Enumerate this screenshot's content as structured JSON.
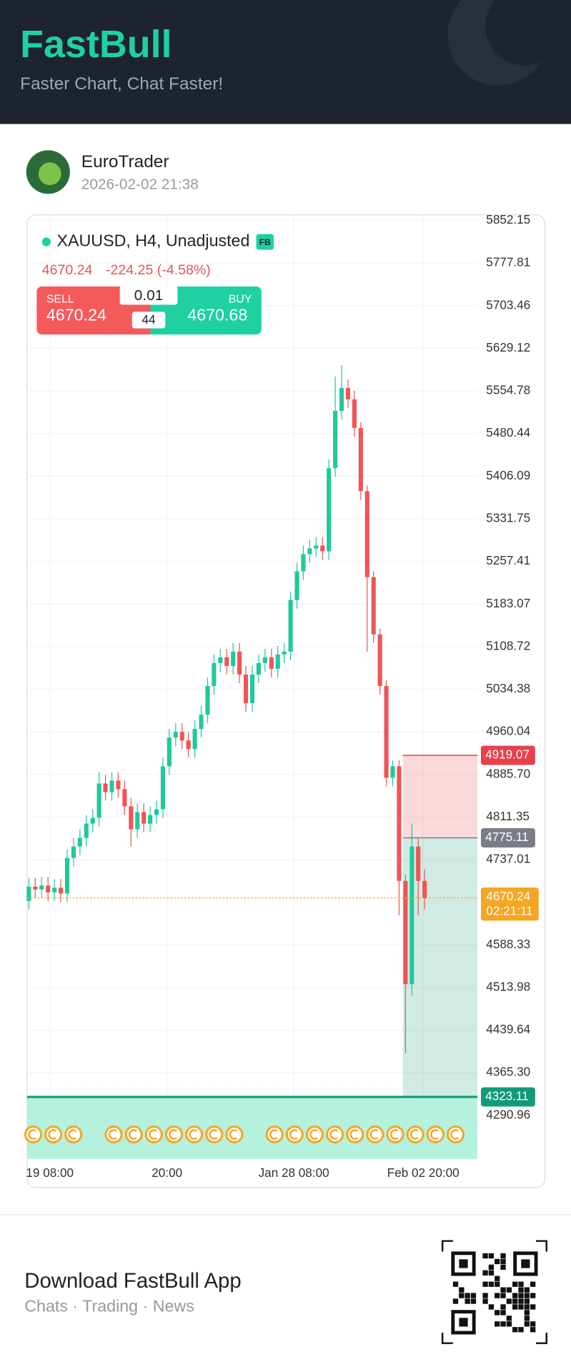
{
  "header": {
    "title": "FastBull",
    "subtitle": "Faster Chart, Chat Faster!"
  },
  "post": {
    "author": "EuroTrader",
    "time": "2026-02-02 21:38"
  },
  "chart_header": {
    "symbol": "XAUUSD, H4, Unadjusted",
    "badge": "FB",
    "price": "4670.24",
    "change": "-224.25 (-4.58%)",
    "sell_label": "SELL",
    "sell_price": "4670.24",
    "lot": "0.01",
    "spread": "44",
    "buy_label": "BUY",
    "buy_price": "4670.68"
  },
  "chart_data": {
    "type": "candlestick",
    "up_color": "#1fc99a",
    "down_color": "#f05454",
    "open": [
      4665,
      4690,
      4685,
      4692,
      4680,
      4688,
      4678,
      4740,
      4760,
      4775,
      4800,
      4810,
      4870,
      4855,
      4875,
      4860,
      4830,
      4790,
      4820,
      4800,
      4815,
      4825,
      4900,
      4950,
      4960,
      4945,
      4930,
      4965,
      4990,
      5040,
      5080,
      5090,
      5075,
      5100,
      5060,
      5010,
      5060,
      5080,
      5090,
      5070,
      5095,
      5100,
      5190,
      5240,
      5270,
      5280,
      5285,
      5275,
      5420,
      5520,
      5560,
      5540,
      5490,
      5380,
      5230,
      5130,
      5040,
      4880,
      4900,
      4700,
      4520,
      4760,
      4700
    ],
    "high": [
      4705,
      4705,
      4707,
      4707,
      4703,
      4703,
      4755,
      4775,
      4790,
      4815,
      4825,
      4890,
      4885,
      4890,
      4890,
      4875,
      4845,
      4835,
      4835,
      4830,
      4840,
      4915,
      4965,
      4975,
      4975,
      4960,
      4980,
      5005,
      5055,
      5095,
      5105,
      5105,
      5115,
      5115,
      5075,
      5075,
      5095,
      5105,
      5105,
      5110,
      5115,
      5205,
      5255,
      5285,
      5295,
      5300,
      5300,
      5435,
      5580,
      5600,
      5575,
      5555,
      5500,
      5390,
      5240,
      5140,
      5050,
      4910,
      4910,
      4710,
      4800,
      4775,
      4720
    ],
    "low": [
      4650,
      4670,
      4670,
      4665,
      4665,
      4663,
      4663,
      4725,
      4745,
      4760,
      4785,
      4795,
      4840,
      4840,
      4845,
      4815,
      4760,
      4775,
      4785,
      4785,
      4800,
      4810,
      4885,
      4935,
      4930,
      4915,
      4915,
      4950,
      4975,
      5025,
      5065,
      5060,
      5060,
      5045,
      4995,
      4995,
      5045,
      5065,
      5055,
      5055,
      5080,
      5085,
      5175,
      5225,
      5255,
      5265,
      5260,
      5260,
      5405,
      5505,
      5525,
      5475,
      5365,
      5100,
      5115,
      5025,
      4865,
      4865,
      4640,
      4400,
      4500,
      4640,
      4650
    ],
    "close": [
      4690,
      4685,
      4692,
      4680,
      4688,
      4678,
      4740,
      4760,
      4775,
      4800,
      4810,
      4870,
      4855,
      4875,
      4860,
      4830,
      4790,
      4820,
      4800,
      4815,
      4825,
      4900,
      4950,
      4960,
      4945,
      4930,
      4965,
      4990,
      5040,
      5080,
      5090,
      5075,
      5100,
      5060,
      5010,
      5060,
      5080,
      5090,
      5070,
      5095,
      5100,
      5190,
      5240,
      5270,
      5280,
      5285,
      5275,
      5420,
      5520,
      5560,
      5540,
      5490,
      5380,
      5230,
      5130,
      5040,
      4880,
      4900,
      4700,
      4520,
      4760,
      4700,
      4670
    ],
    "x_labels": [
      "19 08:00",
      "20:00",
      "Jan 28 08:00",
      "Feb 02 20:00"
    ],
    "ylim": [
      4215,
      5862
    ],
    "yticks": [
      5852.15,
      5777.81,
      5703.46,
      5629.12,
      5554.78,
      5480.44,
      5406.09,
      5331.75,
      5257.41,
      5183.07,
      5108.72,
      5034.38,
      4960.04,
      {
        "value": 4885.7,
        "label": "4885.70"
      },
      4811.35,
      4737.01,
      4588.33,
      4513.98,
      4439.64,
      {
        "value": 4365.3,
        "label": "4365.30"
      },
      4290.96
    ],
    "grid": true,
    "levels": [
      {
        "value": 4919.07,
        "color": "#e8404b"
      },
      {
        "value": 4775.11,
        "color": "#7a7d85"
      },
      {
        "value": 4323.11,
        "color": "#139b78"
      }
    ],
    "last": {
      "value": 4670.24,
      "countdown": "02:21:11",
      "color": "#f5a623"
    }
  },
  "footer": {
    "title": "Download FastBull App",
    "subtitle": "Chats · Trading · News"
  }
}
